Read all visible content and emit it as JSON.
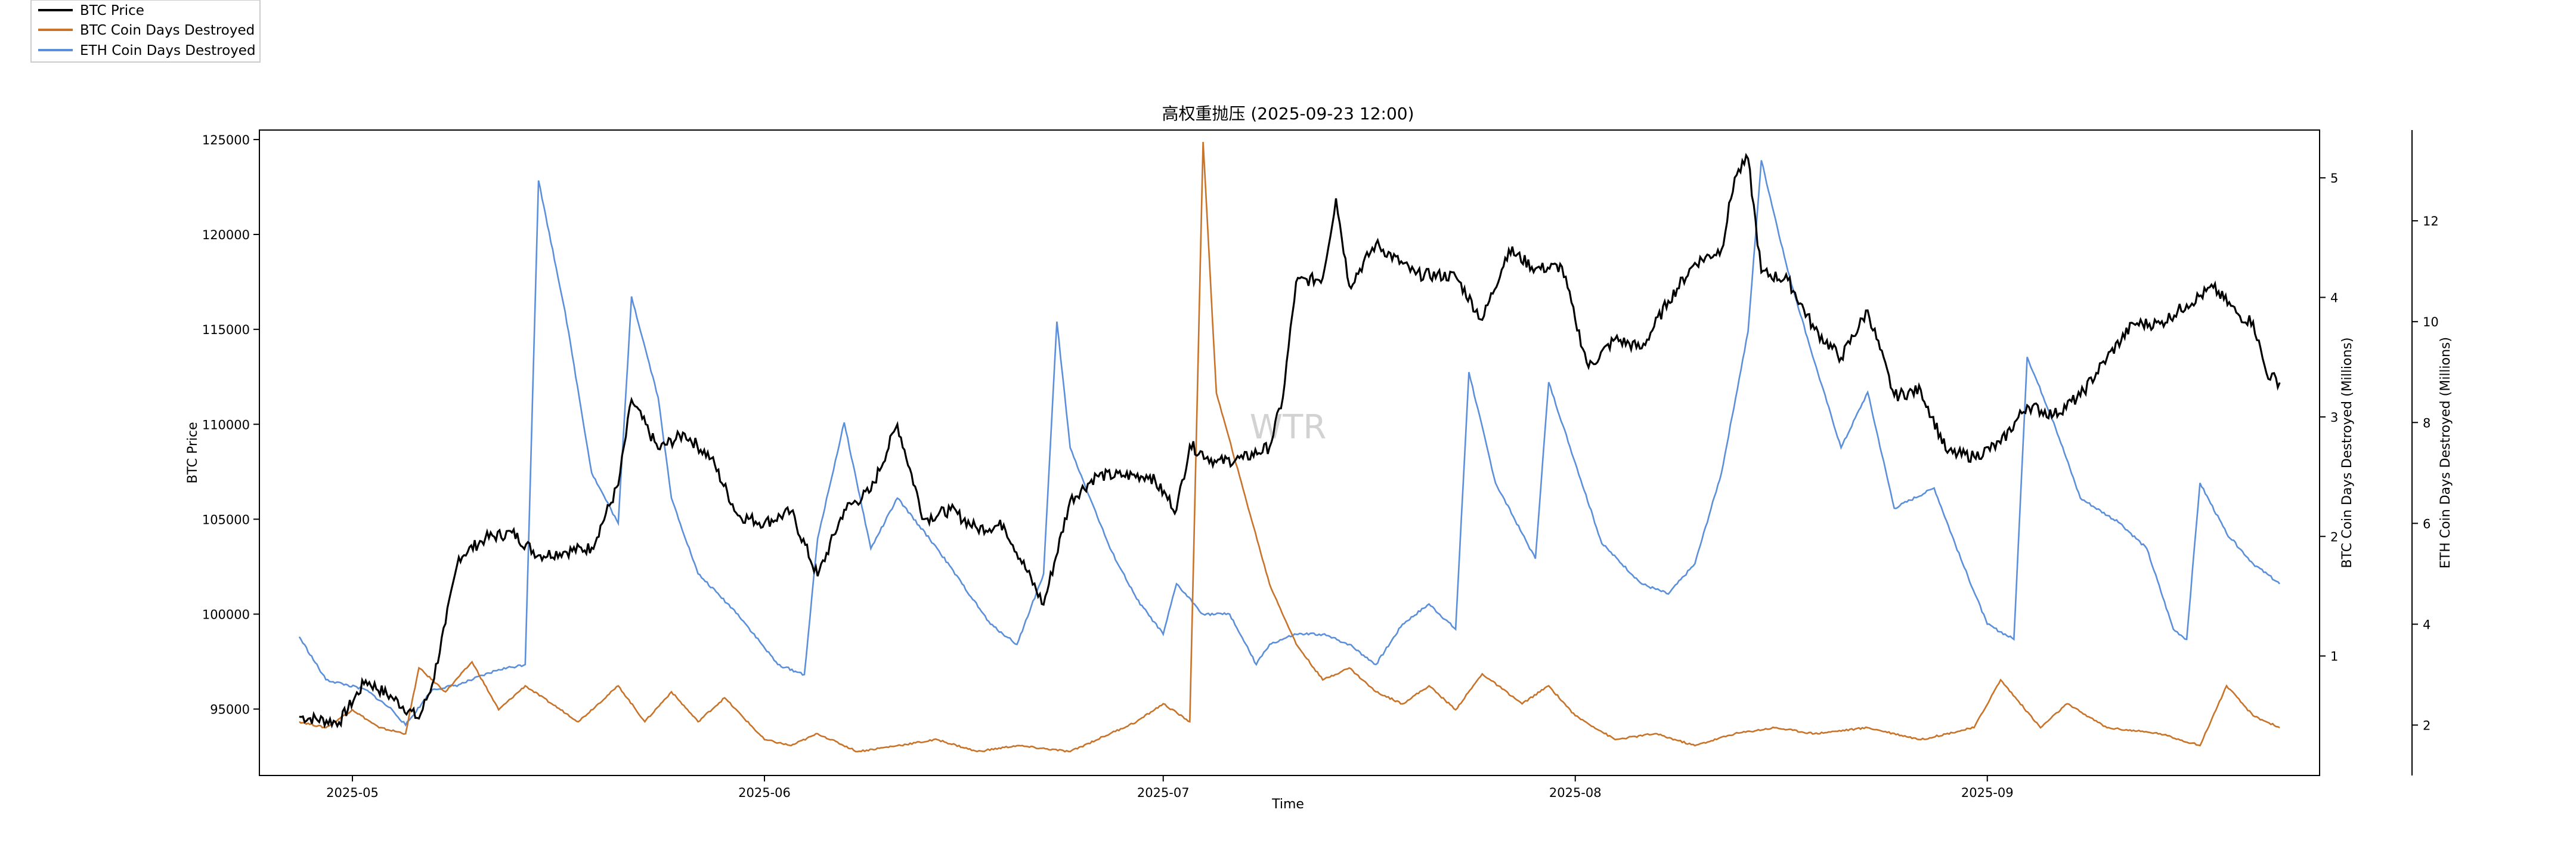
{
  "chart_data": {
    "type": "line",
    "title": "高权重抛压 (2025-09-23 12:00)",
    "xlabel": "Time",
    "x_range": [
      "2025-04-24",
      "2025-09-26"
    ],
    "x_ticks": [
      "2025-05",
      "2025-06",
      "2025-07",
      "2025-08",
      "2025-09"
    ],
    "watermark": "WTR",
    "legend_position": "top-left",
    "axes": {
      "left": {
        "label": "BTC Price",
        "lim": [
          91500,
          125500
        ],
        "ticks": [
          95000,
          100000,
          105000,
          110000,
          115000,
          120000,
          125000
        ]
      },
      "right1": {
        "label": "BTC Coin Days Destroyed (Millions)",
        "lim": [
          0.0,
          5.4
        ],
        "ticks": [
          1,
          2,
          3,
          4,
          5
        ]
      },
      "right2": {
        "label": "ETH Coin Days Destroyed (Millions)",
        "lim": [
          1.0,
          13.8
        ],
        "ticks": [
          2,
          4,
          6,
          8,
          10,
          12
        ]
      }
    },
    "series": [
      {
        "name": "BTC Price",
        "axis": "left",
        "color": "#000000",
        "points": [
          [
            "2025-04-27",
            94600
          ],
          [
            "2025-04-30",
            94300
          ],
          [
            "2025-05-02",
            96500
          ],
          [
            "2025-05-04",
            95600
          ],
          [
            "2025-05-06",
            94500
          ],
          [
            "2025-05-07",
            96300
          ],
          [
            "2025-05-08",
            99500
          ],
          [
            "2025-05-09",
            103000
          ],
          [
            "2025-05-11",
            104000
          ],
          [
            "2025-05-13",
            104300
          ],
          [
            "2025-05-15",
            103100
          ],
          [
            "2025-05-17",
            103300
          ],
          [
            "2025-05-19",
            103500
          ],
          [
            "2025-05-21",
            106800
          ],
          [
            "2025-05-22",
            111300
          ],
          [
            "2025-05-24",
            108700
          ],
          [
            "2025-05-26",
            109500
          ],
          [
            "2025-05-28",
            108200
          ],
          [
            "2025-05-30",
            105200
          ],
          [
            "2025-06-01",
            104800
          ],
          [
            "2025-06-03",
            105400
          ],
          [
            "2025-06-05",
            102000
          ],
          [
            "2025-06-07",
            105500
          ],
          [
            "2025-06-09",
            106500
          ],
          [
            "2025-06-11",
            110000
          ],
          [
            "2025-06-13",
            105000
          ],
          [
            "2025-06-15",
            105500
          ],
          [
            "2025-06-17",
            104500
          ],
          [
            "2025-06-19",
            104700
          ],
          [
            "2025-06-22",
            100500
          ],
          [
            "2025-06-24",
            106000
          ],
          [
            "2025-06-26",
            107300
          ],
          [
            "2025-06-28",
            107300
          ],
          [
            "2025-06-30",
            107300
          ],
          [
            "2025-07-02",
            105500
          ],
          [
            "2025-07-03",
            108900
          ],
          [
            "2025-07-05",
            108000
          ],
          [
            "2025-07-07",
            108200
          ],
          [
            "2025-07-09",
            108800
          ],
          [
            "2025-07-10",
            111400
          ],
          [
            "2025-07-11",
            117500
          ],
          [
            "2025-07-13",
            117700
          ],
          [
            "2025-07-14",
            121900
          ],
          [
            "2025-07-15",
            117300
          ],
          [
            "2025-07-17",
            119500
          ],
          [
            "2025-07-20",
            117900
          ],
          [
            "2025-07-23",
            117800
          ],
          [
            "2025-07-25",
            115500
          ],
          [
            "2025-07-27",
            119200
          ],
          [
            "2025-07-29",
            118200
          ],
          [
            "2025-07-31",
            118300
          ],
          [
            "2025-08-01",
            115500
          ],
          [
            "2025-08-02",
            113000
          ],
          [
            "2025-08-04",
            114500
          ],
          [
            "2025-08-06",
            114000
          ],
          [
            "2025-08-08",
            116500
          ],
          [
            "2025-08-10",
            118500
          ],
          [
            "2025-08-12",
            119200
          ],
          [
            "2025-08-13",
            123000
          ],
          [
            "2025-08-14",
            124000
          ],
          [
            "2025-08-15",
            118000
          ],
          [
            "2025-08-17",
            117600
          ],
          [
            "2025-08-19",
            115000
          ],
          [
            "2025-08-21",
            113500
          ],
          [
            "2025-08-23",
            116000
          ],
          [
            "2025-08-25",
            111500
          ],
          [
            "2025-08-27",
            111800
          ],
          [
            "2025-08-29",
            108500
          ],
          [
            "2025-08-31",
            108300
          ],
          [
            "2025-09-02",
            109000
          ],
          [
            "2025-09-04",
            111000
          ],
          [
            "2025-09-06",
            110500
          ],
          [
            "2025-09-08",
            111500
          ],
          [
            "2025-09-10",
            113500
          ],
          [
            "2025-09-12",
            115300
          ],
          [
            "2025-09-14",
            115300
          ],
          [
            "2025-09-16",
            116300
          ],
          [
            "2025-09-18",
            117200
          ],
          [
            "2025-09-20",
            115700
          ],
          [
            "2025-09-21",
            115400
          ],
          [
            "2025-09-22",
            112700
          ],
          [
            "2025-09-23",
            112200
          ]
        ]
      },
      {
        "name": "BTC Coin Days Destroyed",
        "axis": "right1",
        "color": "#c8732a",
        "points": [
          [
            "2025-04-27",
            0.45
          ],
          [
            "2025-04-29",
            0.4
          ],
          [
            "2025-05-01",
            0.55
          ],
          [
            "2025-05-03",
            0.4
          ],
          [
            "2025-05-05",
            0.35
          ],
          [
            "2025-05-06",
            0.9
          ],
          [
            "2025-05-08",
            0.7
          ],
          [
            "2025-05-10",
            0.95
          ],
          [
            "2025-05-12",
            0.55
          ],
          [
            "2025-05-14",
            0.75
          ],
          [
            "2025-05-16",
            0.6
          ],
          [
            "2025-05-18",
            0.45
          ],
          [
            "2025-05-21",
            0.75
          ],
          [
            "2025-05-23",
            0.45
          ],
          [
            "2025-05-25",
            0.7
          ],
          [
            "2025-05-27",
            0.45
          ],
          [
            "2025-05-29",
            0.65
          ],
          [
            "2025-06-01",
            0.3
          ],
          [
            "2025-06-03",
            0.25
          ],
          [
            "2025-06-05",
            0.35
          ],
          [
            "2025-06-08",
            0.2
          ],
          [
            "2025-06-11",
            0.25
          ],
          [
            "2025-06-14",
            0.3
          ],
          [
            "2025-06-17",
            0.2
          ],
          [
            "2025-06-20",
            0.25
          ],
          [
            "2025-06-24",
            0.2
          ],
          [
            "2025-06-27",
            0.35
          ],
          [
            "2025-06-29",
            0.45
          ],
          [
            "2025-07-01",
            0.6
          ],
          [
            "2025-07-03",
            0.45
          ],
          [
            "2025-07-04",
            5.3
          ],
          [
            "2025-07-05",
            3.2
          ],
          [
            "2025-07-07",
            2.4
          ],
          [
            "2025-07-09",
            1.6
          ],
          [
            "2025-07-11",
            1.1
          ],
          [
            "2025-07-13",
            0.8
          ],
          [
            "2025-07-15",
            0.9
          ],
          [
            "2025-07-17",
            0.7
          ],
          [
            "2025-07-19",
            0.6
          ],
          [
            "2025-07-21",
            0.75
          ],
          [
            "2025-07-23",
            0.55
          ],
          [
            "2025-07-25",
            0.85
          ],
          [
            "2025-07-28",
            0.6
          ],
          [
            "2025-07-30",
            0.75
          ],
          [
            "2025-08-01",
            0.5
          ],
          [
            "2025-08-04",
            0.3
          ],
          [
            "2025-08-07",
            0.35
          ],
          [
            "2025-08-10",
            0.25
          ],
          [
            "2025-08-13",
            0.35
          ],
          [
            "2025-08-16",
            0.4
          ],
          [
            "2025-08-19",
            0.35
          ],
          [
            "2025-08-23",
            0.4
          ],
          [
            "2025-08-27",
            0.3
          ],
          [
            "2025-08-31",
            0.4
          ],
          [
            "2025-09-02",
            0.8
          ],
          [
            "2025-09-05",
            0.4
          ],
          [
            "2025-09-07",
            0.6
          ],
          [
            "2025-09-10",
            0.4
          ],
          [
            "2025-09-14",
            0.35
          ],
          [
            "2025-09-17",
            0.25
          ],
          [
            "2025-09-19",
            0.75
          ],
          [
            "2025-09-21",
            0.5
          ],
          [
            "2025-09-23",
            0.4
          ]
        ]
      },
      {
        "name": "ETH Coin Days Destroyed",
        "axis": "right2",
        "color": "#5b8fd9",
        "points": [
          [
            "2025-04-27",
            3.75
          ],
          [
            "2025-04-29",
            2.9
          ],
          [
            "2025-05-02",
            2.7
          ],
          [
            "2025-05-04",
            2.3
          ],
          [
            "2025-05-05",
            2.0
          ],
          [
            "2025-05-07",
            2.7
          ],
          [
            "2025-05-09",
            2.8
          ],
          [
            "2025-05-12",
            3.1
          ],
          [
            "2025-05-14",
            3.2
          ],
          [
            "2025-05-15",
            12.8
          ],
          [
            "2025-05-17",
            10.2
          ],
          [
            "2025-05-19",
            7.0
          ],
          [
            "2025-05-21",
            6.0
          ],
          [
            "2025-05-22",
            10.5
          ],
          [
            "2025-05-24",
            8.5
          ],
          [
            "2025-05-25",
            6.5
          ],
          [
            "2025-05-27",
            5.0
          ],
          [
            "2025-05-30",
            4.2
          ],
          [
            "2025-06-02",
            3.2
          ],
          [
            "2025-06-04",
            3.0
          ],
          [
            "2025-06-05",
            5.7
          ],
          [
            "2025-06-07",
            8.0
          ],
          [
            "2025-06-09",
            5.5
          ],
          [
            "2025-06-11",
            6.5
          ],
          [
            "2025-06-14",
            5.5
          ],
          [
            "2025-06-18",
            4.0
          ],
          [
            "2025-06-20",
            3.6
          ],
          [
            "2025-06-22",
            5.0
          ],
          [
            "2025-06-23",
            10.0
          ],
          [
            "2025-06-24",
            7.5
          ],
          [
            "2025-06-27",
            5.5
          ],
          [
            "2025-06-29",
            4.5
          ],
          [
            "2025-07-01",
            3.8
          ],
          [
            "2025-07-02",
            4.8
          ],
          [
            "2025-07-04",
            4.2
          ],
          [
            "2025-07-06",
            4.2
          ],
          [
            "2025-07-08",
            3.2
          ],
          [
            "2025-07-09",
            3.6
          ],
          [
            "2025-07-11",
            3.8
          ],
          [
            "2025-07-13",
            3.8
          ],
          [
            "2025-07-15",
            3.6
          ],
          [
            "2025-07-17",
            3.2
          ],
          [
            "2025-07-19",
            4.0
          ],
          [
            "2025-07-21",
            4.4
          ],
          [
            "2025-07-23",
            3.9
          ],
          [
            "2025-07-24",
            9.0
          ],
          [
            "2025-07-26",
            6.8
          ],
          [
            "2025-07-28",
            5.8
          ],
          [
            "2025-07-29",
            5.3
          ],
          [
            "2025-07-30",
            8.8
          ],
          [
            "2025-08-01",
            7.2
          ],
          [
            "2025-08-03",
            5.6
          ],
          [
            "2025-08-06",
            4.8
          ],
          [
            "2025-08-08",
            4.6
          ],
          [
            "2025-08-10",
            5.2
          ],
          [
            "2025-08-12",
            7.0
          ],
          [
            "2025-08-14",
            9.8
          ],
          [
            "2025-08-15",
            13.2
          ],
          [
            "2025-08-17",
            11.0
          ],
          [
            "2025-08-19",
            9.2
          ],
          [
            "2025-08-21",
            7.5
          ],
          [
            "2025-08-23",
            8.6
          ],
          [
            "2025-08-25",
            6.3
          ],
          [
            "2025-08-28",
            6.7
          ],
          [
            "2025-08-30",
            5.3
          ],
          [
            "2025-09-01",
            4.0
          ],
          [
            "2025-09-03",
            3.7
          ],
          [
            "2025-09-04",
            9.3
          ],
          [
            "2025-09-06",
            8.0
          ],
          [
            "2025-09-08",
            6.5
          ],
          [
            "2025-09-11",
            6.0
          ],
          [
            "2025-09-13",
            5.5
          ],
          [
            "2025-09-15",
            3.9
          ],
          [
            "2025-09-16",
            3.7
          ],
          [
            "2025-09-17",
            6.8
          ],
          [
            "2025-09-19",
            5.8
          ],
          [
            "2025-09-21",
            5.2
          ],
          [
            "2025-09-23",
            4.8
          ]
        ]
      }
    ]
  }
}
